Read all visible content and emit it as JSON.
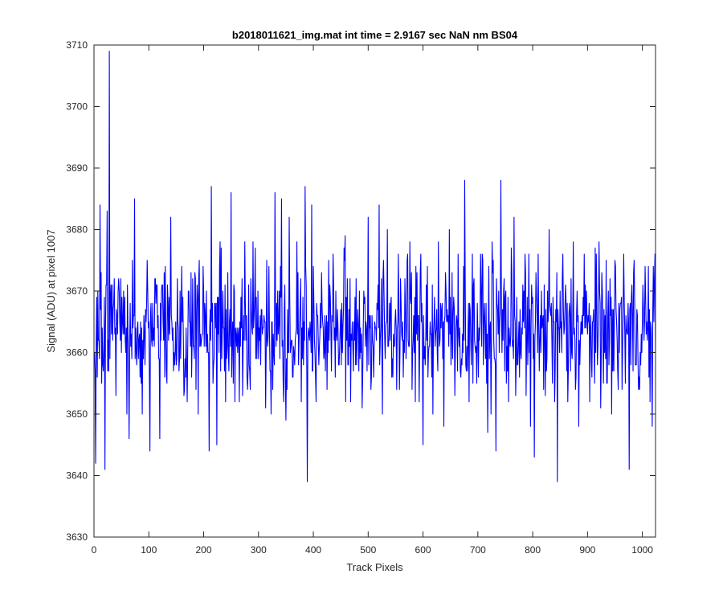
{
  "chart_data": {
    "type": "line",
    "title": "b2018011621_img.mat int time = 2.9167 sec  NaN nm BS04",
    "xlabel": "Track Pixels",
    "ylabel": "Signal (ADU) at pixel 1007",
    "xlim": [
      0,
      1024
    ],
    "ylim": [
      3630,
      3710
    ],
    "xticks": [
      0,
      100,
      200,
      300,
      400,
      500,
      600,
      700,
      800,
      900,
      1000
    ],
    "yticks": [
      3630,
      3640,
      3650,
      3660,
      3670,
      3680,
      3690,
      3700,
      3710
    ],
    "grid": false,
    "box": true,
    "series": [
      {
        "color": "#0000ff",
        "n_points": 1024,
        "mean": 3664,
        "anchors": [
          [
            1,
            3660
          ],
          [
            3,
            3642
          ],
          [
            7,
            3670
          ],
          [
            11,
            3684
          ],
          [
            14,
            3655
          ],
          [
            20,
            3641
          ],
          [
            24,
            3683
          ],
          [
            28,
            3709
          ],
          [
            32,
            3663
          ],
          [
            40,
            3653
          ],
          [
            45,
            3672
          ],
          [
            52,
            3665
          ],
          [
            60,
            3650
          ],
          [
            64,
            3646
          ],
          [
            70,
            3675
          ],
          [
            74,
            3685
          ],
          [
            78,
            3658
          ],
          [
            88,
            3650
          ],
          [
            96,
            3668
          ],
          [
            100,
            3665
          ],
          [
            102,
            3644
          ],
          [
            112,
            3672
          ],
          [
            120,
            3646
          ],
          [
            130,
            3674
          ],
          [
            140,
            3682
          ],
          [
            150,
            3658
          ],
          [
            160,
            3674
          ],
          [
            170,
            3652
          ],
          [
            180,
            3672
          ],
          [
            190,
            3650
          ],
          [
            200,
            3670
          ],
          [
            210,
            3644
          ],
          [
            214,
            3687
          ],
          [
            220,
            3668
          ],
          [
            224,
            3645
          ],
          [
            230,
            3678
          ],
          [
            240,
            3652
          ],
          [
            250,
            3686
          ],
          [
            256,
            3670
          ],
          [
            265,
            3652
          ],
          [
            275,
            3678
          ],
          [
            285,
            3654
          ],
          [
            294,
            3677
          ],
          [
            304,
            3658
          ],
          [
            315,
            3675
          ],
          [
            323,
            3650
          ],
          [
            330,
            3686
          ],
          [
            335,
            3670
          ],
          [
            342,
            3685
          ],
          [
            350,
            3649
          ],
          [
            356,
            3682
          ],
          [
            362,
            3656
          ],
          [
            370,
            3678
          ],
          [
            378,
            3652
          ],
          [
            385,
            3687
          ],
          [
            389,
            3639
          ],
          [
            397,
            3684
          ],
          [
            405,
            3652
          ],
          [
            415,
            3673
          ],
          [
            425,
            3654
          ],
          [
            436,
            3676
          ],
          [
            446,
            3658
          ],
          [
            457,
            3675
          ],
          [
            468,
            3652
          ],
          [
            478,
            3672
          ],
          [
            490,
            3656
          ],
          [
            500,
            3682
          ],
          [
            510,
            3656
          ],
          [
            520,
            3684
          ],
          [
            526,
            3650
          ],
          [
            535,
            3680
          ],
          [
            545,
            3656
          ],
          [
            555,
            3676
          ],
          [
            566,
            3660
          ],
          [
            576,
            3678
          ],
          [
            586,
            3652
          ],
          [
            596,
            3676
          ],
          [
            600,
            3645
          ],
          [
            608,
            3674
          ],
          [
            618,
            3650
          ],
          [
            628,
            3678
          ],
          [
            638,
            3648
          ],
          [
            648,
            3680
          ],
          [
            658,
            3653
          ],
          [
            664,
            3676
          ],
          [
            670,
            3659
          ],
          [
            676,
            3688
          ],
          [
            684,
            3652
          ],
          [
            690,
            3676
          ],
          [
            698,
            3655
          ],
          [
            708,
            3676
          ],
          [
            718,
            3647
          ],
          [
            726,
            3678
          ],
          [
            733,
            3644
          ],
          [
            742,
            3688
          ],
          [
            748,
            3672
          ],
          [
            756,
            3652
          ],
          [
            766,
            3682
          ],
          [
            776,
            3656
          ],
          [
            786,
            3676
          ],
          [
            796,
            3648
          ],
          [
            803,
            3643
          ],
          [
            810,
            3676
          ],
          [
            820,
            3654
          ],
          [
            830,
            3680
          ],
          [
            840,
            3652
          ],
          [
            845,
            3639
          ],
          [
            855,
            3676
          ],
          [
            864,
            3652
          ],
          [
            874,
            3678
          ],
          [
            884,
            3648
          ],
          [
            894,
            3676
          ],
          [
            904,
            3652
          ],
          [
            914,
            3677
          ],
          [
            924,
            3651
          ],
          [
            934,
            3675
          ],
          [
            944,
            3650
          ],
          [
            950,
            3675
          ],
          [
            956,
            3654
          ],
          [
            966,
            3676
          ],
          [
            976,
            3641
          ],
          [
            985,
            3675
          ],
          [
            995,
            3654
          ],
          [
            1005,
            3674
          ],
          [
            1012,
            3656
          ],
          [
            1018,
            3648
          ],
          [
            1022,
            3672
          ],
          [
            1024,
            3660
          ]
        ]
      }
    ]
  }
}
